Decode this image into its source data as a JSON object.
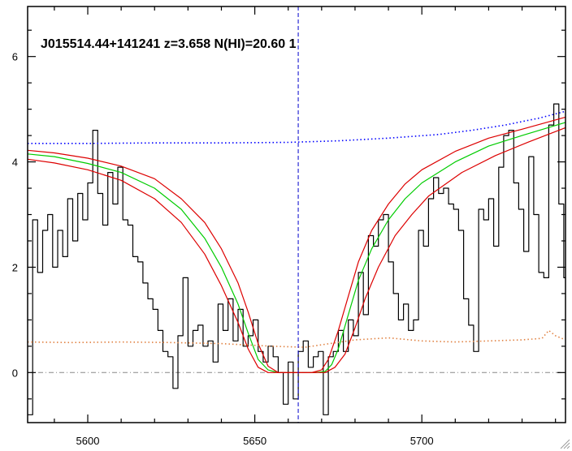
{
  "chart_data": {
    "type": "line",
    "title": "J015514.44+141241 z=3.658 N(HI)=20.60 1",
    "xlabel": "",
    "ylabel": "",
    "xlim": [
      5582,
      5743
    ],
    "ylim": [
      -0.95,
      6.95
    ],
    "x_ticks": [
      5600,
      5650,
      5700
    ],
    "y_ticks": [
      0,
      2,
      4,
      6
    ],
    "grid": false,
    "legend": "none",
    "vertical_marker_x": 5663,
    "zero_line_y": 0,
    "colors": {
      "flux": "#000000",
      "continuum": "#0000ff",
      "fit": "#00cc00",
      "fit_bounds": "#dd0000",
      "error": "#e08040",
      "marker": "#0000cc",
      "zero_line": "#888888"
    },
    "series": [
      {
        "style": "step",
        "color": "#000000",
        "x": [
          5582,
          5583.5,
          5585,
          5586.5,
          5588,
          5589.5,
          5591,
          5592.5,
          5594,
          5595.5,
          5597,
          5598.5,
          5600,
          5601.5,
          5603,
          5604.5,
          5606,
          5607.5,
          5609,
          5610.5,
          5612,
          5613.5,
          5615,
          5616.5,
          5618,
          5619.5,
          5621,
          5622.5,
          5624,
          5625.5,
          5627,
          5628.5,
          5630,
          5631.5,
          5633,
          5634.5,
          5636,
          5637.5,
          5639,
          5640.5,
          5642,
          5643.5,
          5645,
          5646.5,
          5648,
          5649.5,
          5651,
          5652.5,
          5654,
          5655.5,
          5657,
          5658.5,
          5660,
          5661.5,
          5663,
          5664.5,
          5666,
          5667.5,
          5669,
          5670.5,
          5672,
          5673.5,
          5675,
          5676.5,
          5678,
          5679.5,
          5681,
          5682.5,
          5684,
          5685.5,
          5687,
          5688.5,
          5690,
          5691.5,
          5693,
          5694.5,
          5696,
          5697.5,
          5699,
          5700.5,
          5702,
          5703.5,
          5705,
          5706.5,
          5708,
          5709.5,
          5711,
          5712.5,
          5714,
          5715.5,
          5717,
          5718.5,
          5720,
          5721.5,
          5723,
          5724.5,
          5726,
          5727.5,
          5729,
          5730.5,
          5732,
          5733.5,
          5735,
          5736.5,
          5738,
          5739.5,
          5741,
          5742.5
        ],
        "y": [
          -0.8,
          2.9,
          1.9,
          2.7,
          3.0,
          2.0,
          2.7,
          2.2,
          3.3,
          2.5,
          3.4,
          2.9,
          3.6,
          4.6,
          3.4,
          2.8,
          3.8,
          3.2,
          3.9,
          2.9,
          2.8,
          2.2,
          2.1,
          1.7,
          1.4,
          1.2,
          0.8,
          0.4,
          0.3,
          -0.3,
          0.7,
          1.8,
          0.5,
          0.8,
          0.9,
          0.5,
          0.6,
          0.2,
          1.3,
          0.8,
          1.4,
          0.6,
          1.2,
          0.5,
          0.7,
          1.0,
          0.4,
          0.2,
          0.5,
          0.3,
          0.0,
          -0.6,
          0.2,
          -0.5,
          0.4,
          0.6,
          0.1,
          0.3,
          0.4,
          -0.8,
          0.3,
          0.4,
          0.8,
          0.4,
          1.0,
          0.7,
          1.9,
          1.1,
          2.6,
          2.4,
          2.9,
          3.0,
          2.1,
          1.5,
          1.0,
          1.3,
          0.8,
          1.0,
          2.7,
          2.4,
          3.3,
          3.7,
          3.4,
          3.5,
          3.2,
          3.1,
          2.7,
          1.4,
          0.9,
          0.4,
          3.1,
          2.9,
          3.3,
          2.4,
          3.9,
          4.5,
          4.6,
          3.6,
          3.1,
          2.3,
          4.1,
          3.0,
          1.9,
          1.8,
          4.7,
          5.1,
          3.2,
          1.8
        ]
      },
      {
        "style": "dotted",
        "color": "#0000ff",
        "x": [
          5582,
          5600,
          5620,
          5640,
          5660,
          5675,
          5690,
          5705,
          5715,
          5725,
          5735,
          5743
        ],
        "y": [
          4.35,
          4.35,
          4.36,
          4.36,
          4.37,
          4.4,
          4.45,
          4.52,
          4.6,
          4.7,
          4.83,
          4.96
        ]
      },
      {
        "style": "solid",
        "color": "#00cc00",
        "x": [
          5582,
          5590,
          5600,
          5610,
          5620,
          5628,
          5635,
          5640,
          5645,
          5648,
          5651,
          5654,
          5657,
          5660,
          5664,
          5668,
          5671,
          5673,
          5675,
          5678,
          5681,
          5685,
          5690,
          5695,
          5700,
          5710,
          5720,
          5730,
          5743
        ],
        "y": [
          4.15,
          4.1,
          3.97,
          3.8,
          3.5,
          3.1,
          2.55,
          2.0,
          1.3,
          0.75,
          0.25,
          0.05,
          0.0,
          0.0,
          0.0,
          0.0,
          0.02,
          0.15,
          0.45,
          1.1,
          1.75,
          2.35,
          2.9,
          3.3,
          3.6,
          4.0,
          4.3,
          4.5,
          4.75
        ]
      },
      {
        "style": "solid",
        "color": "#dd0000",
        "x": [
          5582,
          5590,
          5600,
          5610,
          5620,
          5628,
          5635,
          5640,
          5645,
          5648,
          5651,
          5654,
          5657,
          5660,
          5664,
          5667,
          5670,
          5672,
          5675,
          5678,
          5681,
          5685,
          5690,
          5695,
          5700,
          5710,
          5720,
          5730,
          5743
        ],
        "y": [
          4.22,
          4.17,
          4.07,
          3.92,
          3.68,
          3.3,
          2.85,
          2.35,
          1.7,
          1.15,
          0.55,
          0.12,
          0.0,
          0.0,
          0.0,
          0.0,
          0.05,
          0.25,
          0.8,
          1.45,
          2.1,
          2.7,
          3.2,
          3.58,
          3.85,
          4.2,
          4.45,
          4.62,
          4.85
        ]
      },
      {
        "style": "solid",
        "color": "#dd0000",
        "x": [
          5582,
          5590,
          5600,
          5610,
          5620,
          5628,
          5635,
          5640,
          5645,
          5648,
          5651,
          5654,
          5657,
          5660,
          5664,
          5668,
          5671,
          5674,
          5677,
          5680,
          5683,
          5687,
          5692,
          5697,
          5702,
          5712,
          5722,
          5732,
          5743
        ],
        "y": [
          4.05,
          3.98,
          3.85,
          3.65,
          3.3,
          2.85,
          2.25,
          1.65,
          0.95,
          0.45,
          0.1,
          0.0,
          0.0,
          0.0,
          0.0,
          0.0,
          0.0,
          0.1,
          0.35,
          0.85,
          1.4,
          2.0,
          2.6,
          3.0,
          3.35,
          3.8,
          4.12,
          4.38,
          4.65
        ]
      },
      {
        "style": "dotted",
        "color": "#e08040",
        "x": [
          5582,
          5595,
          5610,
          5625,
          5640,
          5655,
          5665,
          5680,
          5690,
          5700,
          5710,
          5720,
          5730,
          5736,
          5738,
          5740,
          5743
        ],
        "y": [
          0.58,
          0.57,
          0.58,
          0.57,
          0.55,
          0.5,
          0.48,
          0.62,
          0.66,
          0.6,
          0.58,
          0.6,
          0.62,
          0.65,
          0.8,
          0.7,
          0.62
        ]
      }
    ]
  }
}
